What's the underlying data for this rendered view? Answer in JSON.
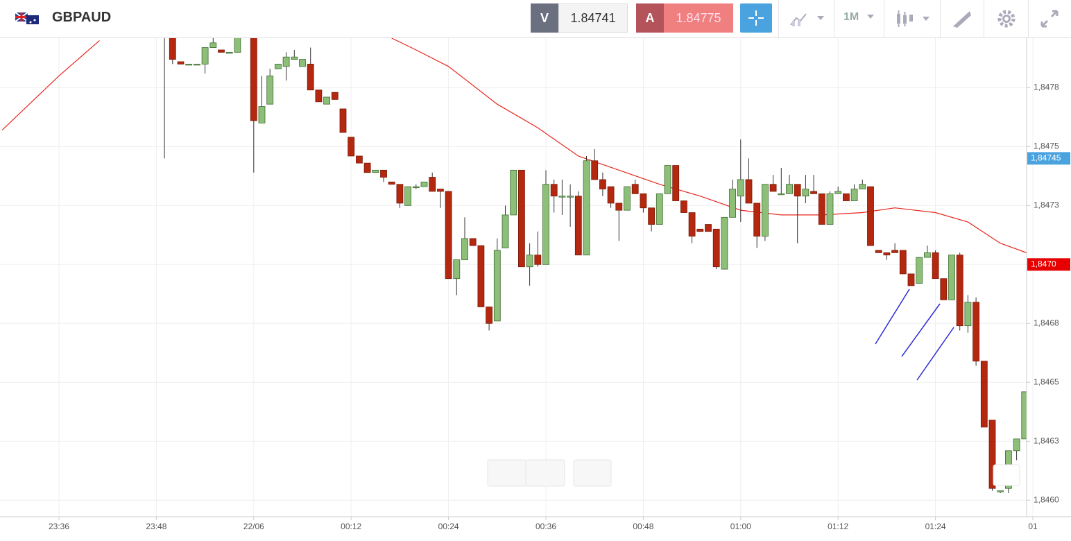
{
  "toolbar": {
    "symbol": "GBPAUD",
    "sell_label": "V",
    "sell_price": "1.84741",
    "buy_label": "A",
    "buy_price": "1.84775",
    "timeframe": "1M"
  },
  "chart_data": {
    "type": "candlestick",
    "up_color": "#8dbf79",
    "down_color": "#b3280f",
    "grid": true,
    "ylim": [
      1.84593,
      1.84796
    ],
    "yticks": [
      {
        "value": 1.846,
        "label": "1,8460"
      },
      {
        "value": 1.84625,
        "label": "1,8463"
      },
      {
        "value": 1.8465,
        "label": "1,8465"
      },
      {
        "value": 1.84675,
        "label": "1,8468"
      },
      {
        "value": 1.847,
        "label": "1,8470"
      },
      {
        "value": 1.84725,
        "label": "1,8473"
      },
      {
        "value": 1.8475,
        "label": "1,8475"
      },
      {
        "value": 1.84775,
        "label": "1,8478"
      }
    ],
    "xticks": [
      "23:36",
      "23:48",
      "22/06",
      "00:12",
      "00:24",
      "00:36",
      "00:48",
      "01:00",
      "01:12",
      "01:24",
      "01"
    ],
    "x": [
      "23:49",
      "23:50",
      "23:51",
      "23:52",
      "23:53",
      "23:54",
      "23:55",
      "23:56",
      "23:57",
      "23:58",
      "00:00",
      "00:01",
      "00:02",
      "00:03",
      "00:04",
      "00:05",
      "00:06",
      "00:07",
      "00:08",
      "00:09",
      "00:10",
      "00:11",
      "00:12",
      "00:13",
      "00:14",
      "00:15",
      "00:16",
      "00:17",
      "00:18",
      "00:19",
      "00:20",
      "00:21",
      "00:22",
      "00:23",
      "00:24",
      "00:25",
      "00:26",
      "00:27",
      "00:28",
      "00:29",
      "00:30",
      "00:31",
      "00:32",
      "00:33",
      "00:34",
      "00:35",
      "00:36",
      "00:37",
      "00:38",
      "00:39",
      "00:40",
      "00:41",
      "00:42",
      "00:43",
      "00:44",
      "00:45",
      "00:46",
      "00:47",
      "00:48",
      "00:49",
      "00:50",
      "00:51",
      "00:52",
      "00:53",
      "00:54",
      "00:55",
      "00:56",
      "00:57",
      "00:58",
      "00:59",
      "01:00",
      "01:01",
      "01:02",
      "01:03",
      "01:04",
      "01:05",
      "01:06",
      "01:07",
      "01:08",
      "01:09",
      "01:10",
      "01:11",
      "01:12",
      "01:13",
      "01:14",
      "01:15",
      "01:16",
      "01:17",
      "01:18",
      "01:19",
      "01:20",
      "01:21",
      "01:22",
      "01:23",
      "01:24",
      "01:25",
      "01:26",
      "01:27",
      "01:28",
      "01:29",
      "01:30",
      "01:31",
      "01:32",
      "01:33",
      "01:34",
      "01:35"
    ],
    "open": [
      1.8481,
      1.84797,
      1.84786,
      1.84785,
      1.84785,
      1.84785,
      1.84792,
      1.84791,
      1.8479,
      1.8479,
      1.84797,
      1.8476,
      1.84768,
      1.84783,
      1.84784,
      1.84787,
      1.84784,
      1.84785,
      1.84774,
      1.84768,
      1.84773,
      1.84766,
      1.84754,
      1.84746,
      1.84743,
      1.84739,
      1.8474,
      1.84735,
      1.84734,
      1.84725,
      1.84733,
      1.84733,
      1.84737,
      1.84732,
      1.84731,
      1.84694,
      1.84702,
      1.84711,
      1.84708,
      1.84682,
      1.84676,
      1.84707,
      1.84721,
      1.8474,
      1.84699,
      1.84704,
      1.847,
      1.84734,
      1.84729,
      1.84729,
      1.84729,
      1.84704,
      1.84744,
      1.84736,
      1.84733,
      1.84726,
      1.84723,
      1.84734,
      1.8473,
      1.84724,
      1.84717,
      1.8473,
      1.84742,
      1.84727,
      1.84722,
      1.84715,
      1.84717,
      1.84715,
      1.84698,
      1.8472,
      1.84729,
      1.84736,
      1.84726,
      1.84712,
      1.84734,
      1.8473,
      1.8473,
      1.84734,
      1.84729,
      1.84731,
      1.8473,
      1.84717,
      1.8473,
      1.8473,
      1.84727,
      1.84732,
      1.84733,
      1.84706,
      1.84705,
      1.84706,
      1.84706,
      1.84696,
      1.84692,
      1.84703,
      1.84705,
      1.84694,
      1.84685,
      1.84704,
      1.84674,
      1.84684,
      1.84659,
      1.84634,
      1.84604,
      1.84605,
      1.84621,
      1.84626
    ],
    "high": [
      1.8482,
      1.84797,
      1.84786,
      1.84785,
      1.84785,
      1.84792,
      1.84796,
      1.84791,
      1.8479,
      1.84797,
      1.84797,
      1.8478,
      1.84783,
      1.84785,
      1.8479,
      1.84791,
      1.84787,
      1.84792,
      1.84774,
      1.84771,
      1.84773,
      1.84766,
      1.84754,
      1.84746,
      1.84743,
      1.8474,
      1.8474,
      1.84735,
      1.84734,
      1.84733,
      1.84734,
      1.84735,
      1.84739,
      1.84732,
      1.84731,
      1.84702,
      1.8472,
      1.84711,
      1.84708,
      1.84682,
      1.84711,
      1.84725,
      1.8474,
      1.8474,
      1.84709,
      1.84714,
      1.8474,
      1.84736,
      1.84736,
      1.84734,
      1.84731,
      1.84746,
      1.84749,
      1.84739,
      1.84733,
      1.84726,
      1.84733,
      1.84736,
      1.8473,
      1.84724,
      1.8473,
      1.84742,
      1.84742,
      1.84727,
      1.84722,
      1.84715,
      1.84717,
      1.84715,
      1.8472,
      1.84736,
      1.84753,
      1.84745,
      1.84726,
      1.84734,
      1.84738,
      1.84741,
      1.84738,
      1.84734,
      1.84738,
      1.84738,
      1.8473,
      1.84731,
      1.84733,
      1.8473,
      1.84734,
      1.84736,
      1.84733,
      1.84706,
      1.84705,
      1.84709,
      1.84706,
      1.84696,
      1.84703,
      1.84708,
      1.84706,
      1.84694,
      1.84704,
      1.84705,
      1.84687,
      1.84686,
      1.84659,
      1.84634,
      1.84604,
      1.84621,
      1.84626,
      1.84646
    ],
    "low": [
      1.84745,
      1.84785,
      1.84785,
      1.84785,
      1.84785,
      1.84781,
      1.84792,
      1.8479,
      1.8479,
      1.8479,
      1.84739,
      1.8476,
      1.84768,
      1.84783,
      1.84778,
      1.84787,
      1.84784,
      1.84774,
      1.84769,
      1.84768,
      1.8477,
      1.84756,
      1.84746,
      1.84743,
      1.84739,
      1.84739,
      1.84735,
      1.84734,
      1.84724,
      1.84725,
      1.84732,
      1.84733,
      1.84731,
      1.84724,
      1.84694,
      1.84687,
      1.84702,
      1.84708,
      1.84682,
      1.84672,
      1.84676,
      1.84707,
      1.84721,
      1.84699,
      1.84691,
      1.84699,
      1.847,
      1.84722,
      1.84721,
      1.84716,
      1.84704,
      1.84704,
      1.84736,
      1.84729,
      1.84724,
      1.8471,
      1.84723,
      1.8473,
      1.84722,
      1.84714,
      1.84717,
      1.8473,
      1.84727,
      1.84722,
      1.84709,
      1.84714,
      1.84714,
      1.84698,
      1.84698,
      1.8472,
      1.84718,
      1.84726,
      1.84707,
      1.8471,
      1.84731,
      1.8473,
      1.8473,
      1.84709,
      1.84726,
      1.8473,
      1.84717,
      1.84717,
      1.8473,
      1.84727,
      1.84727,
      1.84732,
      1.84708,
      1.84705,
      1.84702,
      1.84705,
      1.84696,
      1.84691,
      1.84692,
      1.84703,
      1.84694,
      1.84685,
      1.84685,
      1.84672,
      1.84671,
      1.84657,
      1.84631,
      1.84604,
      1.84603,
      1.84603,
      1.84617,
      1.84626
    ],
    "close": [
      1.848,
      1.84787,
      1.84785,
      1.84785,
      1.84785,
      1.84792,
      1.84794,
      1.8479,
      1.8479,
      1.84797,
      1.84761,
      1.84767,
      1.8478,
      1.84785,
      1.84788,
      1.84788,
      1.84787,
      1.84774,
      1.84769,
      1.84771,
      1.8477,
      1.84756,
      1.84746,
      1.84743,
      1.84739,
      1.8474,
      1.84737,
      1.84734,
      1.84726,
      1.84733,
      1.84733,
      1.84735,
      1.84731,
      1.84731,
      1.84694,
      1.84702,
      1.84711,
      1.84708,
      1.84682,
      1.84675,
      1.84706,
      1.84721,
      1.8474,
      1.84699,
      1.84704,
      1.847,
      1.84734,
      1.84729,
      1.84729,
      1.84729,
      1.84704,
      1.84744,
      1.84736,
      1.84732,
      1.84726,
      1.84723,
      1.84733,
      1.8473,
      1.84724,
      1.84717,
      1.8473,
      1.84742,
      1.84727,
      1.84722,
      1.84712,
      1.84714,
      1.84714,
      1.84699,
      1.8472,
      1.84732,
      1.84736,
      1.84726,
      1.84712,
      1.84734,
      1.84731,
      1.8473,
      1.84734,
      1.84729,
      1.84732,
      1.8473,
      1.84717,
      1.8473,
      1.84731,
      1.84727,
      1.84732,
      1.84734,
      1.84708,
      1.84705,
      1.84704,
      1.84705,
      1.84696,
      1.84691,
      1.84703,
      1.84705,
      1.84694,
      1.84685,
      1.84704,
      1.84674,
      1.84684,
      1.84659,
      1.84631,
      1.84605,
      1.84604,
      1.84621,
      1.84626,
      1.84646
    ],
    "moving_average": {
      "color": "#e8261e",
      "x": [
        "23:29",
        "23:36",
        "23:41",
        "23:58",
        "00:17",
        "00:20",
        "00:24",
        "00:30",
        "00:35",
        "00:40",
        "00:45",
        "00:50",
        "00:55",
        "01:00",
        "01:05",
        "01:10",
        "01:15",
        "01:19",
        "01:24",
        "01:28",
        "01:32",
        "01:36"
      ],
      "values": [
        1.84757,
        1.8478,
        1.84795,
        null,
        1.84796,
        1.84791,
        1.84784,
        1.84768,
        1.84758,
        1.84746,
        1.8474,
        1.84734,
        1.84729,
        1.84723,
        1.84721,
        1.84721,
        1.84722,
        1.84724,
        1.84722,
        1.84718,
        1.84709,
        1.84704
      ]
    },
    "price_tags": [
      {
        "label": "1,84745",
        "value": 1.84745,
        "color": "#4aa3df"
      },
      {
        "label": "1,8470",
        "value": 1.847,
        "color": "#e60000"
      }
    ]
  }
}
